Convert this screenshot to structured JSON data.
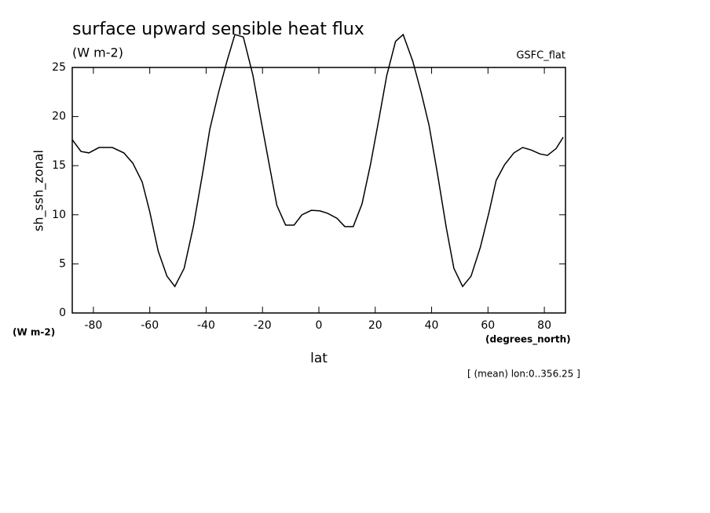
{
  "chart_data": {
    "type": "line",
    "title": "surface upward sensible heat flux",
    "units": "(W m-2)",
    "model": "GSFC_flat",
    "ylabel": "sh_ssh_zonal",
    "yunits": "(W m-2)",
    "xlabel": "lat",
    "xunits": "(degrees_north)",
    "note": "[ (mean) lon:0..356.25 ]",
    "xlim": [
      -87.5,
      87.5
    ],
    "ylim": [
      0,
      25
    ],
    "xticks": [
      -80,
      -60,
      -40,
      -20,
      0,
      20,
      40,
      60,
      80
    ],
    "yticks": [
      0,
      5,
      10,
      15,
      20,
      25
    ],
    "series": [
      {
        "color": "#000000",
        "x": [
          -87.5,
          -84.4,
          -81.6,
          -78,
          -73.3,
          -69.2,
          -66,
          -62.7,
          -60,
          -57,
          -53.9,
          -51.1,
          -47.8,
          -44.5,
          -41.2,
          -38.7,
          -35.6,
          -32.6,
          -29.8,
          -26.8,
          -23.4,
          -20.7,
          -17.6,
          -14.9,
          -11.8,
          -8.8,
          -6,
          -2.7,
          0.3,
          3.1,
          6.4,
          9.2,
          12.2,
          15.3,
          18.3,
          21.4,
          24.1,
          27.2,
          29.9,
          33.3,
          36.3,
          39.1,
          42.1,
          45.2,
          47.9,
          51,
          54,
          57.3,
          60.4,
          62.9,
          65.9,
          69.2,
          72.3,
          75.3,
          78.4,
          81.1,
          84.2,
          86.7
        ],
        "values": [
          17.65,
          16.45,
          16.3,
          16.85,
          16.85,
          16.3,
          15.25,
          13.35,
          10.3,
          6.3,
          3.75,
          2.7,
          4.55,
          8.85,
          14.3,
          18.7,
          22.45,
          25.65,
          28.35,
          28.1,
          24.2,
          19.9,
          15.1,
          10.95,
          8.95,
          8.95,
          10.0,
          10.45,
          10.4,
          10.15,
          9.65,
          8.8,
          8.8,
          11.1,
          15.1,
          19.9,
          24.2,
          27.65,
          28.35,
          25.65,
          22.45,
          19.1,
          14.15,
          8.7,
          4.55,
          2.7,
          3.75,
          6.7,
          10.3,
          13.5,
          15.1,
          16.3,
          16.85,
          16.6,
          16.2,
          16.05,
          16.75,
          17.9
        ]
      }
    ]
  }
}
